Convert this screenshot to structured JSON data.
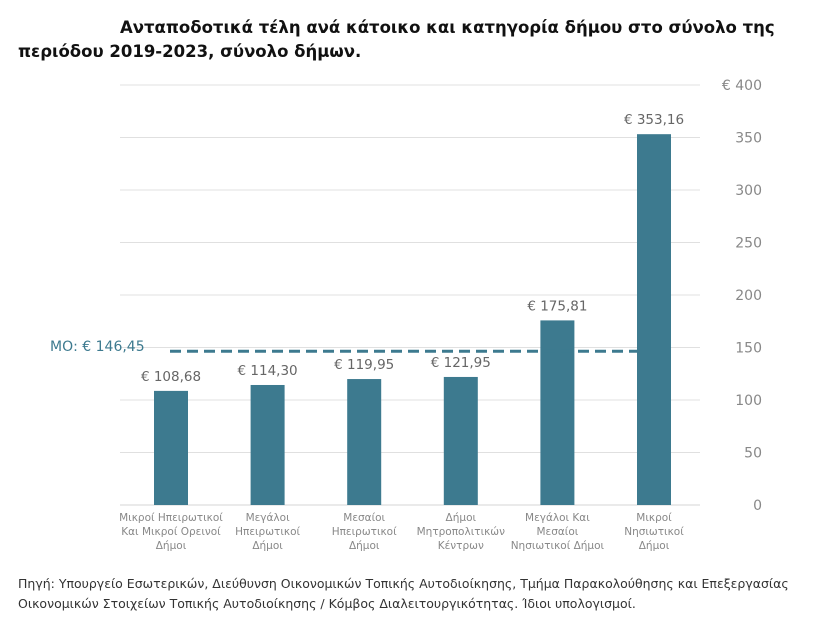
{
  "chart_data": {
    "type": "bar",
    "title": "Ανταποδοτικά τέλη ανά κάτοικο και κατηγορία δήμου στο σύνολο της περιόδου 2019-2023, σύνολο δήμων.",
    "categories": [
      [
        "Μικροί Ηπειρωτικοί",
        "Και Μικροί Ορεινοί",
        "Δήμοι"
      ],
      [
        "Μεγάλοι",
        "Ηπειρωτικοί",
        "Δήμοι"
      ],
      [
        "Μεσαίοι",
        "Ηπειρωτικοί",
        "Δήμοι"
      ],
      [
        "Δήμοι",
        "Μητροπολιτικών",
        "Κέντρων"
      ],
      [
        "Μεγάλοι Και",
        "Μεσαίοι",
        "Νησιωτικοί Δήμοι"
      ],
      [
        "Μικροί",
        "Νησιωτικοί",
        "Δήμοι"
      ]
    ],
    "values": [
      108.68,
      114.3,
      119.95,
      121.95,
      175.81,
      353.16
    ],
    "value_labels": [
      "€ 108,68",
      "€ 114,30",
      "€ 119,95",
      "€ 121,95",
      "€ 175,81",
      "€ 353,16"
    ],
    "mean": 146.45,
    "mean_label": "ΜΟ: € 146,45",
    "ylim": [
      0,
      400
    ],
    "yticks": [
      0,
      50,
      100,
      150,
      200,
      250,
      300,
      350,
      400
    ],
    "ytick_labels": [
      "0",
      "50",
      "100",
      "150",
      "200",
      "250",
      "300",
      "350",
      "€ 400"
    ],
    "y_axis_side": "right",
    "grid": true,
    "xlabel": "",
    "ylabel": "",
    "colors": {
      "bar": "#3d7a8f",
      "mean": "#3d7a8f",
      "grid": "#e0e0e0"
    }
  },
  "source": "Πηγή: Υπουργείο Εσωτερικών, Διεύθυνση Οικονομικών Τοπικής Αυτοδιοίκησης, Τμήμα Παρακολούθησης και Επεξεργασίας Οικονομικών Στοιχείων Τοπικής Αυτοδιοίκησης / Κόμβος Διαλειτουργικότητας. Ίδιοι υπολογισμοί."
}
